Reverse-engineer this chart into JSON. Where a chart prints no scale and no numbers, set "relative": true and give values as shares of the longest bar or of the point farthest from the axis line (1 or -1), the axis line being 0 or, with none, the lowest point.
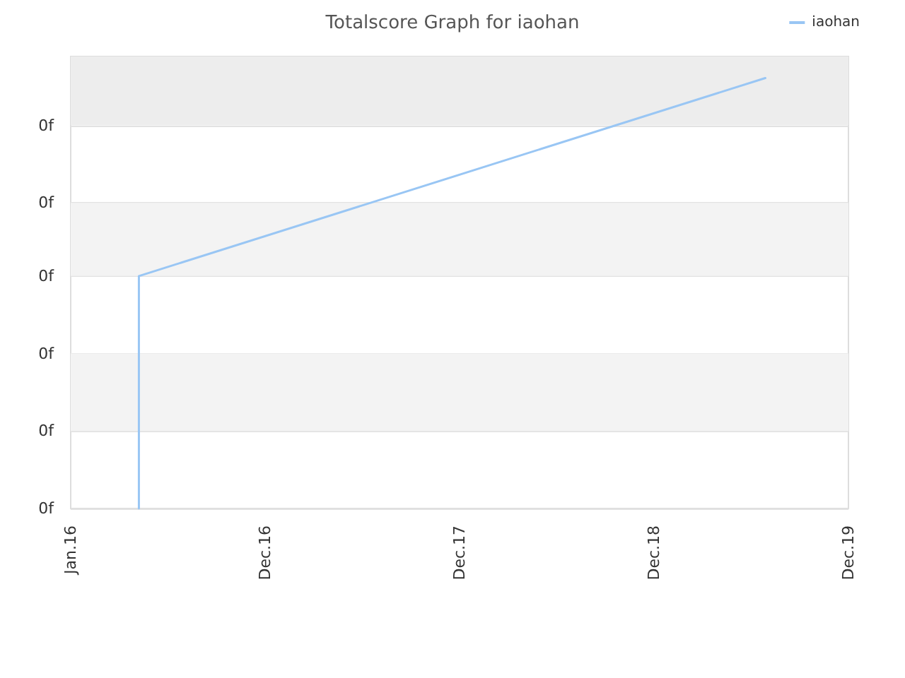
{
  "chart_data": {
    "type": "line",
    "title": "Totalscore Graph for iaohan",
    "x": [
      "2016-05-08",
      "2016-05-08",
      "2019-07-28"
    ],
    "series": [
      {
        "name": "iaohan",
        "color": "#99c6f4",
        "values": [
          0,
          0.54,
          1
        ]
      }
    ],
    "relative": true,
    "xlim": [
      "2016-01-01",
      "2019-12-31"
    ],
    "xticks": [
      {
        "value": "2016-01-01",
        "label": "Jan.16"
      },
      {
        "value": "2016-12-31",
        "label": "Dec.16"
      },
      {
        "value": "2017-12-31",
        "label": "Dec.17"
      },
      {
        "value": "2018-12-31",
        "label": "Dec.18"
      },
      {
        "value": "2019-12-31",
        "label": "Dec.19"
      }
    ],
    "bands": [
      {
        "axis": "y",
        "from": 0.18,
        "to": 0.36,
        "color": "#f3f3f3"
      },
      {
        "axis": "y",
        "from": 0.54,
        "to": 0.71,
        "color": "#f3f3f3"
      },
      {
        "axis": "y",
        "from": 0.89,
        "to": 1.05,
        "color": "#ededed"
      }
    ],
    "annotations": [
      "0f",
      "0f",
      "0f",
      "0f",
      "0f",
      "0f"
    ],
    "grid": "y",
    "legend": "top right",
    "marker": "none",
    "line_style": "solid"
  }
}
